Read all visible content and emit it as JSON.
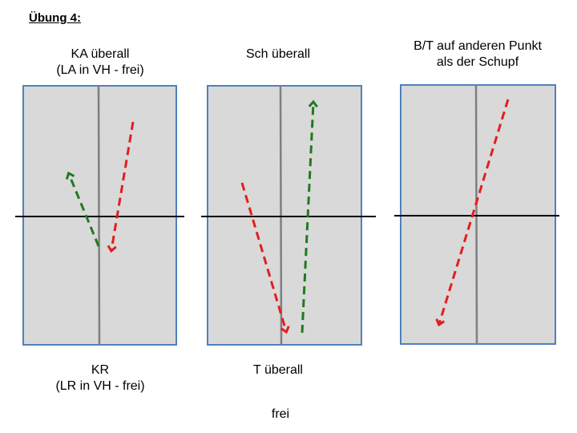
{
  "title": "Übung 4:",
  "panels": [
    {
      "top_label": "KA überall\n(LA  in VH - frei)",
      "bottom_label": "KR\n(LR in VH - frei)",
      "arrows": [
        {
          "color": "#e31e1e",
          "direction": "down"
        },
        {
          "color": "#1f7a1f",
          "direction": "up"
        }
      ]
    },
    {
      "top_label": "Sch überall",
      "bottom_label": "T überall",
      "arrows": [
        {
          "color": "#e31e1e",
          "direction": "down"
        },
        {
          "color": "#1f7a1f",
          "direction": "up"
        }
      ]
    },
    {
      "top_label": "B/T auf anderen Punkt\nals der Schupf",
      "bottom_label": "",
      "arrows": [
        {
          "color": "#e31e1e",
          "direction": "down"
        }
      ]
    }
  ],
  "footer_label": "frei",
  "colors": {
    "table_fill": "#d9d9d9",
    "table_border": "#4f81bd",
    "center_line": "#7f7f7f",
    "net": "#000000"
  }
}
